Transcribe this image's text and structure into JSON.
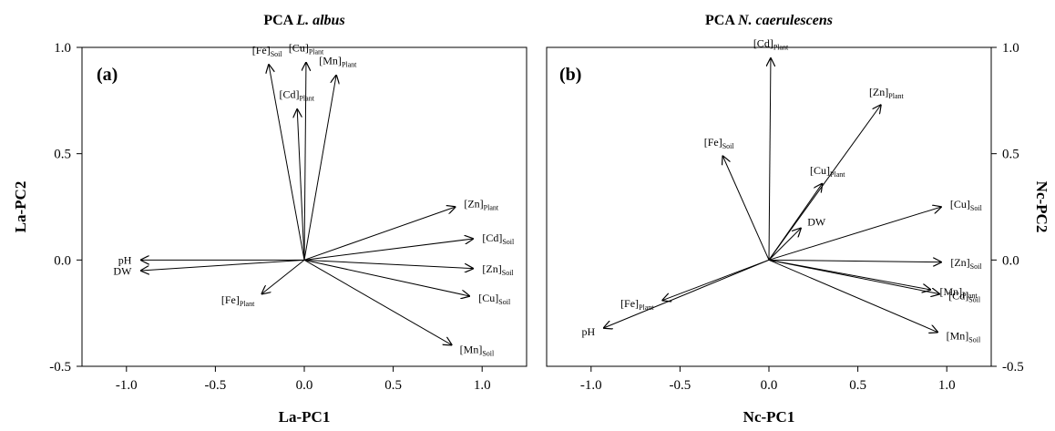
{
  "chart_data": [
    {
      "type": "biplot",
      "title_prefix": "PCA ",
      "title_species": "L. albus",
      "panel_label": "(a)",
      "xlabel": "La-PC1",
      "ylabel": "La-PC2",
      "xlim": [
        -1.25,
        1.25
      ],
      "ylim": [
        -0.5,
        1.0
      ],
      "xticks": [
        "-1.0",
        "-0.5",
        "0.0",
        "0.5",
        "1.0"
      ],
      "yticks": [
        "-0.5",
        "0.0",
        "0.5",
        "1.0"
      ],
      "vectors": [
        {
          "base": "[Fe]",
          "sub": "Soil",
          "x": -0.2,
          "y": 0.92
        },
        {
          "base": "[Cu]",
          "sub": "Plant",
          "x": 0.01,
          "y": 0.93
        },
        {
          "base": "[Mn]",
          "sub": "Plant",
          "x": 0.18,
          "y": 0.87
        },
        {
          "base": "[Cd]",
          "sub": "Plant",
          "x": -0.04,
          "y": 0.71
        },
        {
          "base": "[Zn]",
          "sub": "Plant",
          "x": 0.85,
          "y": 0.25
        },
        {
          "base": "[Cd]",
          "sub": "Soil",
          "x": 0.95,
          "y": 0.1
        },
        {
          "base": "pH",
          "sub": "",
          "x": -0.92,
          "y": 0.0
        },
        {
          "base": "DW",
          "sub": "",
          "x": -0.92,
          "y": -0.05
        },
        {
          "base": "[Zn]",
          "sub": "Soil",
          "x": 0.95,
          "y": -0.04
        },
        {
          "base": "[Cu]",
          "sub": "Soil",
          "x": 0.93,
          "y": -0.17
        },
        {
          "base": "[Fe]",
          "sub": "Plant",
          "x": -0.24,
          "y": -0.16
        },
        {
          "base": "[Mn]",
          "sub": "Soil",
          "x": 0.83,
          "y": -0.4
        }
      ]
    },
    {
      "type": "biplot",
      "title_prefix": "PCA ",
      "title_species": "N. caerulescens",
      "panel_label": "(b)",
      "xlabel": "Nc-PC1",
      "ylabel": "Nc-PC2",
      "xlim": [
        -1.25,
        1.25
      ],
      "ylim": [
        -0.5,
        1.0
      ],
      "xticks": [
        "-1.0",
        "-0.5",
        "0.0",
        "0.5",
        "1.0"
      ],
      "yticks": [
        "-0.5",
        "0.0",
        "0.5",
        "1.0"
      ],
      "vectors": [
        {
          "base": "[Cd]",
          "sub": "Plant",
          "x": 0.01,
          "y": 0.95
        },
        {
          "base": "[Zn]",
          "sub": "Plant",
          "x": 0.63,
          "y": 0.73
        },
        {
          "base": "[Fe]",
          "sub": "Soil",
          "x": -0.26,
          "y": 0.49
        },
        {
          "base": "[Cu]",
          "sub": "Plant",
          "x": 0.3,
          "y": 0.36
        },
        {
          "base": "DW",
          "sub": "",
          "x": 0.18,
          "y": 0.15
        },
        {
          "base": "[Cu]",
          "sub": "Soil",
          "x": 0.97,
          "y": 0.25
        },
        {
          "base": "[Zn]",
          "sub": "Soil",
          "x": 0.97,
          "y": -0.01
        },
        {
          "base": "[Mn]",
          "sub": "Plant",
          "x": 0.91,
          "y": -0.14
        },
        {
          "base": "[Cd]",
          "sub": "Soil",
          "x": 0.96,
          "y": -0.16
        },
        {
          "base": "[Mn]",
          "sub": "Soil",
          "x": 0.95,
          "y": -0.34
        },
        {
          "base": "[Fe]",
          "sub": "Plant",
          "x": -0.6,
          "y": -0.19
        },
        {
          "base": "pH",
          "sub": "",
          "x": -0.93,
          "y": -0.32
        }
      ]
    }
  ]
}
